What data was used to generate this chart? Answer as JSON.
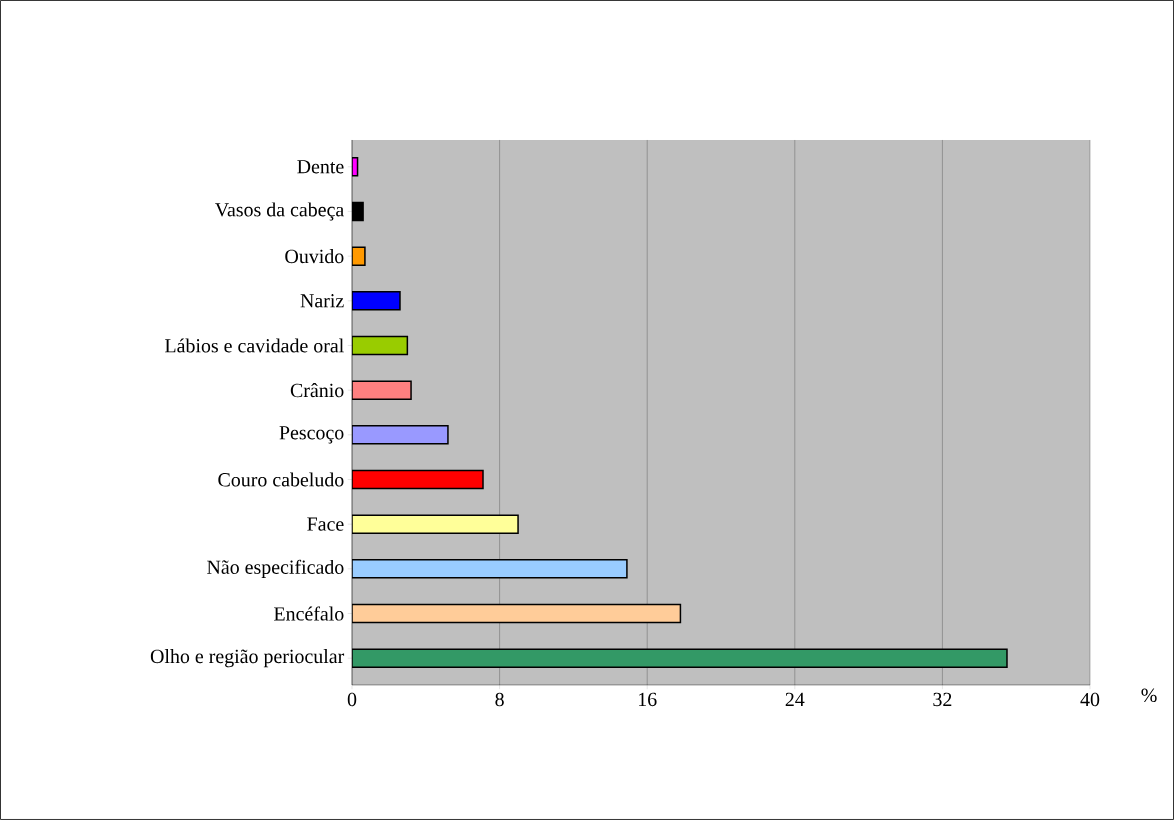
{
  "chart_data": {
    "type": "bar",
    "orientation": "horizontal",
    "xlabel": "%",
    "categories": [
      "Dente",
      "Vasos da cabeça",
      "Ouvido",
      "Nariz",
      "Lábios e cavidade oral",
      "Crânio",
      "Pescoço",
      "Couro cabeludo",
      "Face",
      "Não especificado",
      "Encéfalo",
      "Olho e região periocular"
    ],
    "values": [
      0.3,
      0.6,
      0.7,
      2.6,
      3.0,
      3.2,
      5.2,
      7.1,
      9.0,
      14.9,
      17.8,
      35.5
    ],
    "colors": [
      "#ff00ff",
      "#000000",
      "#ff9900",
      "#0000ff",
      "#99cc00",
      "#ff8080",
      "#9999ff",
      "#ff0000",
      "#ffff99",
      "#99ccff",
      "#ffcc99",
      "#339966"
    ],
    "xlim": [
      0,
      40
    ],
    "xticks": [
      0,
      8,
      16,
      24,
      32,
      40
    ],
    "grid": "x"
  }
}
